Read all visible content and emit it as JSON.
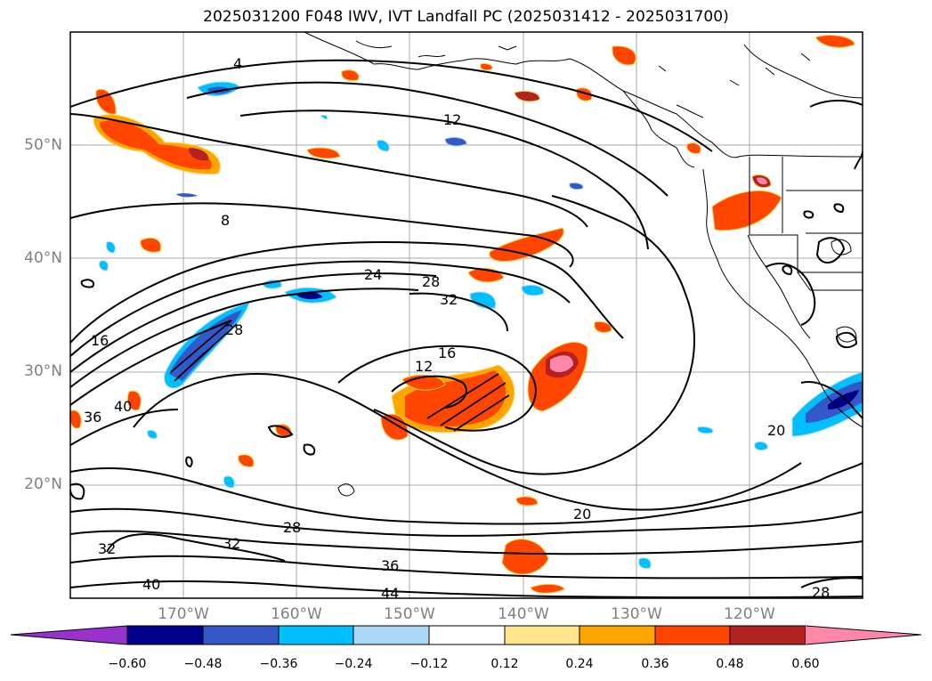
{
  "title": "2025031200 F048 IWV, IVT Landfall PC (2025031412 - 2025031700)",
  "lat_labels": [
    "50°N",
    "40°N",
    "30°N",
    "20°N"
  ],
  "lon_labels": [
    "170°W",
    "160°W",
    "150°W",
    "140°W",
    "130°W",
    "120°W"
  ],
  "contour_labels": [
    "4",
    "12",
    "8",
    "24",
    "28",
    "32",
    "16",
    "28",
    "16",
    "12",
    "36",
    "40",
    "20",
    "32",
    "28",
    "32",
    "36",
    "40",
    "44",
    "20",
    "28"
  ],
  "colorbar": {
    "ticks": [
      "−0.60",
      "−0.48",
      "−0.36",
      "−0.24",
      "−0.12",
      "0.12",
      "0.24",
      "0.36",
      "0.48",
      "0.60"
    ],
    "colors": [
      "#9932cc",
      "#00008b",
      "#3458c8",
      "#00bfff",
      "#add8f6",
      "#ffffff",
      "#ffe68c",
      "#ffa500",
      "#ff4500",
      "#b22222",
      "#ff88aa"
    ]
  }
}
